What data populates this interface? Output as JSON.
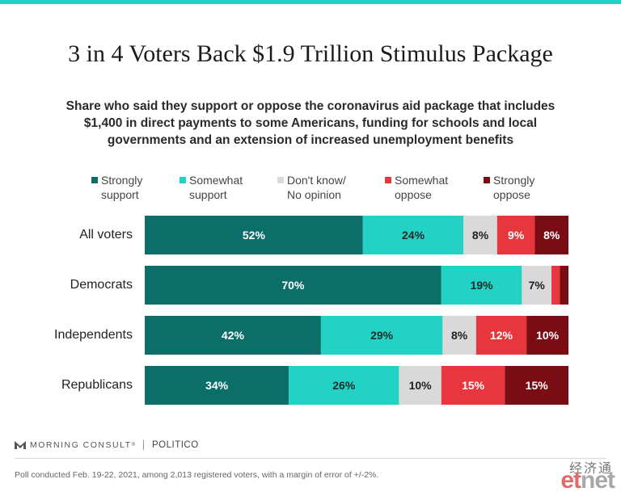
{
  "title": "3 in 4 Voters Back $1.9 Trillion Stimulus Package",
  "subtitle": "Share who said they support or oppose the coronavirus aid package that includes $1,400 in direct payments to some Americans, funding for schools and local governments and an extension of increased unemployment benefits",
  "colors": {
    "strongly_support": "#0b6e69",
    "somewhat_support": "#22d3c5",
    "dont_know": "#d9d9d9",
    "somewhat_oppose": "#e8363e",
    "strongly_oppose": "#7a0d14"
  },
  "chart_data": {
    "type": "bar",
    "orientation": "horizontal",
    "stacked": true,
    "categories": [
      "All voters",
      "Democrats",
      "Independents",
      "Republicans"
    ],
    "series": [
      {
        "name": "Strongly\nsupport",
        "color": "#0b6e69",
        "label_color": "#ffffff",
        "values": [
          52,
          70,
          42,
          34
        ],
        "labels": [
          "52%",
          "70%",
          "42%",
          "34%"
        ]
      },
      {
        "name": "Somewhat\nsupport",
        "color": "#22d3c5",
        "label_color": "#1f2a2a",
        "values": [
          24,
          19,
          29,
          26
        ],
        "labels": [
          "24%",
          "19%",
          "29%",
          "26%"
        ]
      },
      {
        "name": "Don't know/\nNo opinion",
        "color": "#d9d9d9",
        "label_color": "#1f1f1f",
        "values": [
          8,
          7,
          8,
          10
        ],
        "labels": [
          "8%",
          "7%",
          "8%",
          "10%"
        ]
      },
      {
        "name": "Somewhat\noppose",
        "color": "#e8363e",
        "label_color": "#ffffff",
        "values": [
          9,
          2,
          12,
          15
        ],
        "labels": [
          "9%",
          "",
          "12%",
          "15%"
        ]
      },
      {
        "name": "Strongly\noppose",
        "color": "#7a0d14",
        "label_color": "#ffffff",
        "values": [
          8,
          2,
          10,
          15
        ],
        "labels": [
          "8%",
          "",
          "10%",
          "15%"
        ]
      }
    ],
    "xlim": [
      0,
      100
    ],
    "grid": false,
    "legend": "top"
  },
  "footer": {
    "brand": "MORNING CONSULT",
    "registered": "®",
    "partner": "POLITICO",
    "note": "Poll conducted Feb. 19-22, 2021, among 2,013 registered voters, with a margin of error of +/-2%."
  },
  "watermark": {
    "chinese": "经济通",
    "brand_et": "et",
    "brand_net": "net"
  }
}
